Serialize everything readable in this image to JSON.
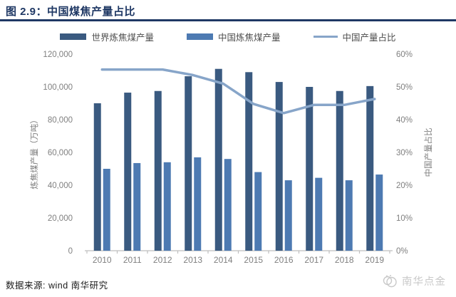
{
  "header": {
    "title": "图 2.9：中国煤焦产量占比"
  },
  "legend": {
    "items": [
      {
        "label": "世界炼焦煤产量",
        "type": "bar",
        "color": "#3a5a80"
      },
      {
        "label": "中国炼焦煤产量",
        "type": "bar",
        "color": "#4d7ab2"
      },
      {
        "label": "中国产量占比",
        "type": "line",
        "color": "#87a5c9"
      }
    ]
  },
  "chart_data": {
    "type": "bar",
    "subtype": "grouped-bars-with-line",
    "categories": [
      "2010",
      "2011",
      "2012",
      "2013",
      "2014",
      "2015",
      "2016",
      "2017",
      "2018",
      "2019"
    ],
    "series": [
      {
        "name": "世界炼焦煤产量",
        "type": "bar",
        "axis": "left",
        "color": "#3a5a80",
        "values": [
          90000,
          96500,
          97500,
          106500,
          111000,
          109000,
          103000,
          100000,
          97500,
          100500
        ]
      },
      {
        "name": "中国炼焦煤产量",
        "type": "bar",
        "axis": "left",
        "color": "#4d7ab2",
        "values": [
          50000,
          53500,
          54000,
          57000,
          56000,
          48000,
          43000,
          44500,
          43000,
          46500
        ]
      },
      {
        "name": "中国产量占比",
        "type": "line",
        "axis": "right",
        "color": "#87a5c9",
        "values": [
          55.3,
          55.3,
          55.3,
          53.6,
          51.0,
          44.8,
          42.0,
          44.5,
          44.5,
          46.3
        ]
      }
    ],
    "left_axis": {
      "label": "炼焦煤产量（万吨）",
      "min": 0,
      "max": 120000,
      "tick_step": 20000,
      "tick_labels": [
        "0",
        "20,000",
        "40,000",
        "60,000",
        "80,000",
        "100,000",
        "120,000"
      ]
    },
    "right_axis": {
      "label": "中国产量占比",
      "min": 0,
      "max": 60,
      "tick_step": 10,
      "tick_labels": [
        "0%",
        "10%",
        "20%",
        "30%",
        "40%",
        "50%",
        "60%"
      ]
    },
    "grid": false,
    "legend_position": "top"
  },
  "source": {
    "text": "数据来源: wind 南华研究"
  },
  "watermark": {
    "text": "南华点金"
  },
  "colors": {
    "title": "#1f3864",
    "rule": "#1f3864",
    "axis_text": "#7f7f7f",
    "axis_line": "#bfbfbf",
    "watermark": "#c9c9c9"
  }
}
